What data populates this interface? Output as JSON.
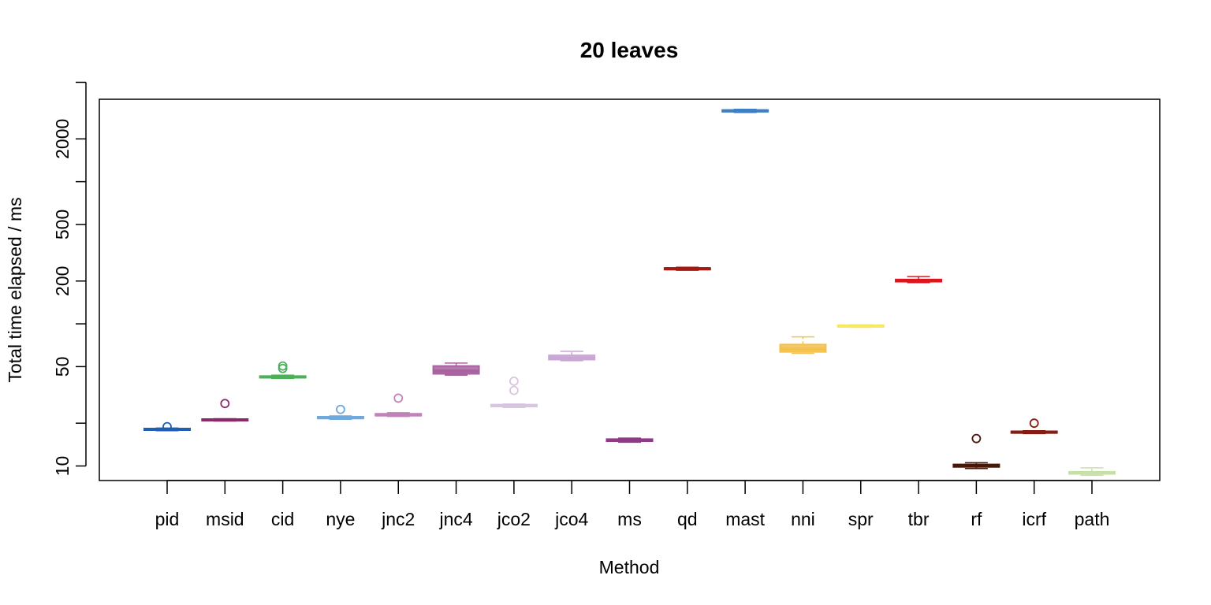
{
  "chart_data": {
    "type": "boxplot",
    "title": "20 leaves",
    "xlabel": "Method",
    "ylabel": "Total time elapsed / ms",
    "y_scale": "log",
    "ylim": [
      7.9,
      3800
    ],
    "y_ticks": [
      10,
      20,
      50,
      100,
      200,
      500,
      1000,
      2000,
      5000
    ],
    "y_tick_labels": [
      "10",
      "",
      "50",
      "",
      "200",
      "500",
      "",
      "2000",
      ""
    ],
    "grid": false,
    "categories": [
      "pid",
      "msid",
      "cid",
      "nye",
      "jnc2",
      "jnc4",
      "jco2",
      "jco4",
      "ms",
      "qd",
      "mast",
      "nni",
      "spr",
      "tbr",
      "rf",
      "icrf",
      "path"
    ],
    "boxes": [
      {
        "name": "pid",
        "color": "#1f5fb0",
        "whisker_low": 17.7,
        "q1": 17.9,
        "median": 18.1,
        "q3": 18.3,
        "whisker_high": 18.5,
        "outliers": [
          18.9
        ]
      },
      {
        "name": "msid",
        "color": "#8a2a6a",
        "whisker_low": 20.7,
        "q1": 20.9,
        "median": 21.1,
        "q3": 21.3,
        "whisker_high": 21.5,
        "outliers": [
          27.5
        ]
      },
      {
        "name": "cid",
        "color": "#4caf5a",
        "whisker_low": 41.3,
        "q1": 41.8,
        "median": 42.3,
        "q3": 42.9,
        "whisker_high": 43.5,
        "outliers": [
          48.5,
          50.5
        ]
      },
      {
        "name": "nye",
        "color": "#6fa8dc",
        "whisker_low": 21.3,
        "q1": 21.6,
        "median": 21.9,
        "q3": 22.2,
        "whisker_high": 22.5,
        "outliers": [
          25.0
        ]
      },
      {
        "name": "jnc2",
        "color": "#c083b8",
        "whisker_low": 22.3,
        "q1": 22.6,
        "median": 22.9,
        "q3": 23.3,
        "whisker_high": 23.7,
        "outliers": [
          30.0
        ]
      },
      {
        "name": "jnc4",
        "color": "#a862a0",
        "whisker_low": 43.5,
        "q1": 44.5,
        "median": 46.5,
        "q3": 50.5,
        "whisker_high": 53.0,
        "outliers": []
      },
      {
        "name": "jco2",
        "color": "#d8c6e0",
        "whisker_low": 25.8,
        "q1": 26.2,
        "median": 26.6,
        "q3": 27.0,
        "whisker_high": 27.3,
        "outliers": [
          34.0,
          39.5
        ]
      },
      {
        "name": "jco4",
        "color": "#c9a7d3",
        "whisker_low": 55.0,
        "q1": 56.0,
        "median": 57.5,
        "q3": 60.0,
        "whisker_high": 64.0,
        "outliers": []
      },
      {
        "name": "ms",
        "color": "#8e3a88",
        "whisker_low": 14.7,
        "q1": 14.95,
        "median": 15.2,
        "q3": 15.45,
        "whisker_high": 15.7,
        "outliers": []
      },
      {
        "name": "qd",
        "color": "#a31a14",
        "whisker_low": 238,
        "q1": 241,
        "median": 244,
        "q3": 247,
        "whisker_high": 250,
        "outliers": []
      },
      {
        "name": "mast",
        "color": "#3f7fc4",
        "whisker_low": 3070,
        "q1": 3110,
        "median": 3150,
        "q3": 3190,
        "whisker_high": 3230,
        "outliers": []
      },
      {
        "name": "nni",
        "color": "#f2c14e",
        "whisker_low": 62.0,
        "q1": 63.5,
        "median": 66.5,
        "q3": 71.5,
        "whisker_high": 81.0,
        "outliers": []
      },
      {
        "name": "spr",
        "color": "#f5e960",
        "whisker_low": 94.5,
        "q1": 95.5,
        "median": 96.5,
        "q3": 97.5,
        "whisker_high": 98.5,
        "outliers": []
      },
      {
        "name": "tbr",
        "color": "#e0141e",
        "whisker_low": 195,
        "q1": 198,
        "median": 201,
        "q3": 205,
        "whisker_high": 215,
        "outliers": []
      },
      {
        "name": "rf",
        "color": "#4a1608",
        "whisker_low": 9.6,
        "q1": 9.85,
        "median": 10.05,
        "q3": 10.25,
        "whisker_high": 10.55,
        "outliers": [
          15.6
        ]
      },
      {
        "name": "icrf",
        "color": "#851c12",
        "whisker_low": 16.9,
        "q1": 17.1,
        "median": 17.3,
        "q3": 17.5,
        "whisker_high": 17.7,
        "outliers": [
          20.0
        ]
      },
      {
        "name": "path",
        "color": "#c6e0a8",
        "whisker_low": 8.6,
        "q1": 8.8,
        "median": 8.95,
        "q3": 9.1,
        "whisker_high": 9.7,
        "outliers": []
      }
    ]
  }
}
